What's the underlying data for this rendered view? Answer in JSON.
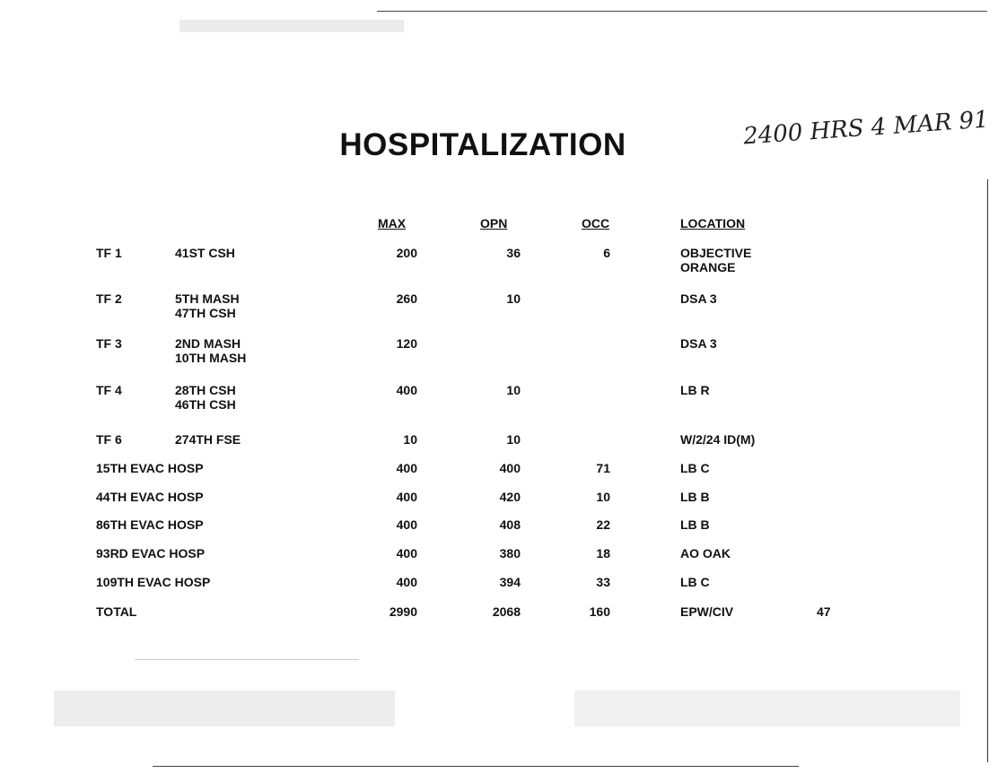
{
  "document": {
    "title": "HOSPITALIZATION",
    "handwritten_note": "2400 HRS 4 MAR 91",
    "columns": [
      "MAX",
      "OPN",
      "OCC",
      "LOCATION"
    ],
    "rows": [
      {
        "task_force": "TF 1",
        "unit": "41ST CSH",
        "max": "200",
        "opn": "36",
        "occ": "6",
        "location": "OBJECTIVE\nORANGE"
      },
      {
        "task_force": "TF 2",
        "unit": "5TH MASH\n47TH CSH",
        "max": "260",
        "opn": "10",
        "occ": "",
        "location": "DSA 3"
      },
      {
        "task_force": "TF 3",
        "unit": "2ND MASH\n10TH MASH",
        "max": "120",
        "opn": "",
        "occ": "",
        "location": "DSA 3"
      },
      {
        "task_force": "TF 4",
        "unit": "28TH CSH\n46TH CSH",
        "max": "400",
        "opn": "10",
        "occ": "",
        "location": "LB R"
      },
      {
        "task_force": "TF 6",
        "unit": "274TH FSE",
        "max": "10",
        "opn": "10",
        "occ": "",
        "location": "W/2/24 ID(M)"
      },
      {
        "task_force": "",
        "unit": "15TH EVAC HOSP",
        "max": "400",
        "opn": "400",
        "occ": "71",
        "location": "LB C"
      },
      {
        "task_force": "",
        "unit": "44TH EVAC HOSP",
        "max": "400",
        "opn": "420",
        "occ": "10",
        "location": "LB B"
      },
      {
        "task_force": "",
        "unit": "86TH EVAC HOSP",
        "max": "400",
        "opn": "408",
        "occ": "22",
        "location": "LB B"
      },
      {
        "task_force": "",
        "unit": "93RD EVAC HOSP",
        "max": "400",
        "opn": "380",
        "occ": "18",
        "location": "AO OAK"
      },
      {
        "task_force": "",
        "unit": "109TH EVAC HOSP",
        "max": "400",
        "opn": "394",
        "occ": "33",
        "location": "LB C"
      }
    ],
    "total": {
      "label": "TOTAL",
      "max": "2990",
      "opn": "2068",
      "occ": "160",
      "location": "EPW/CIV",
      "extra": "47"
    }
  }
}
